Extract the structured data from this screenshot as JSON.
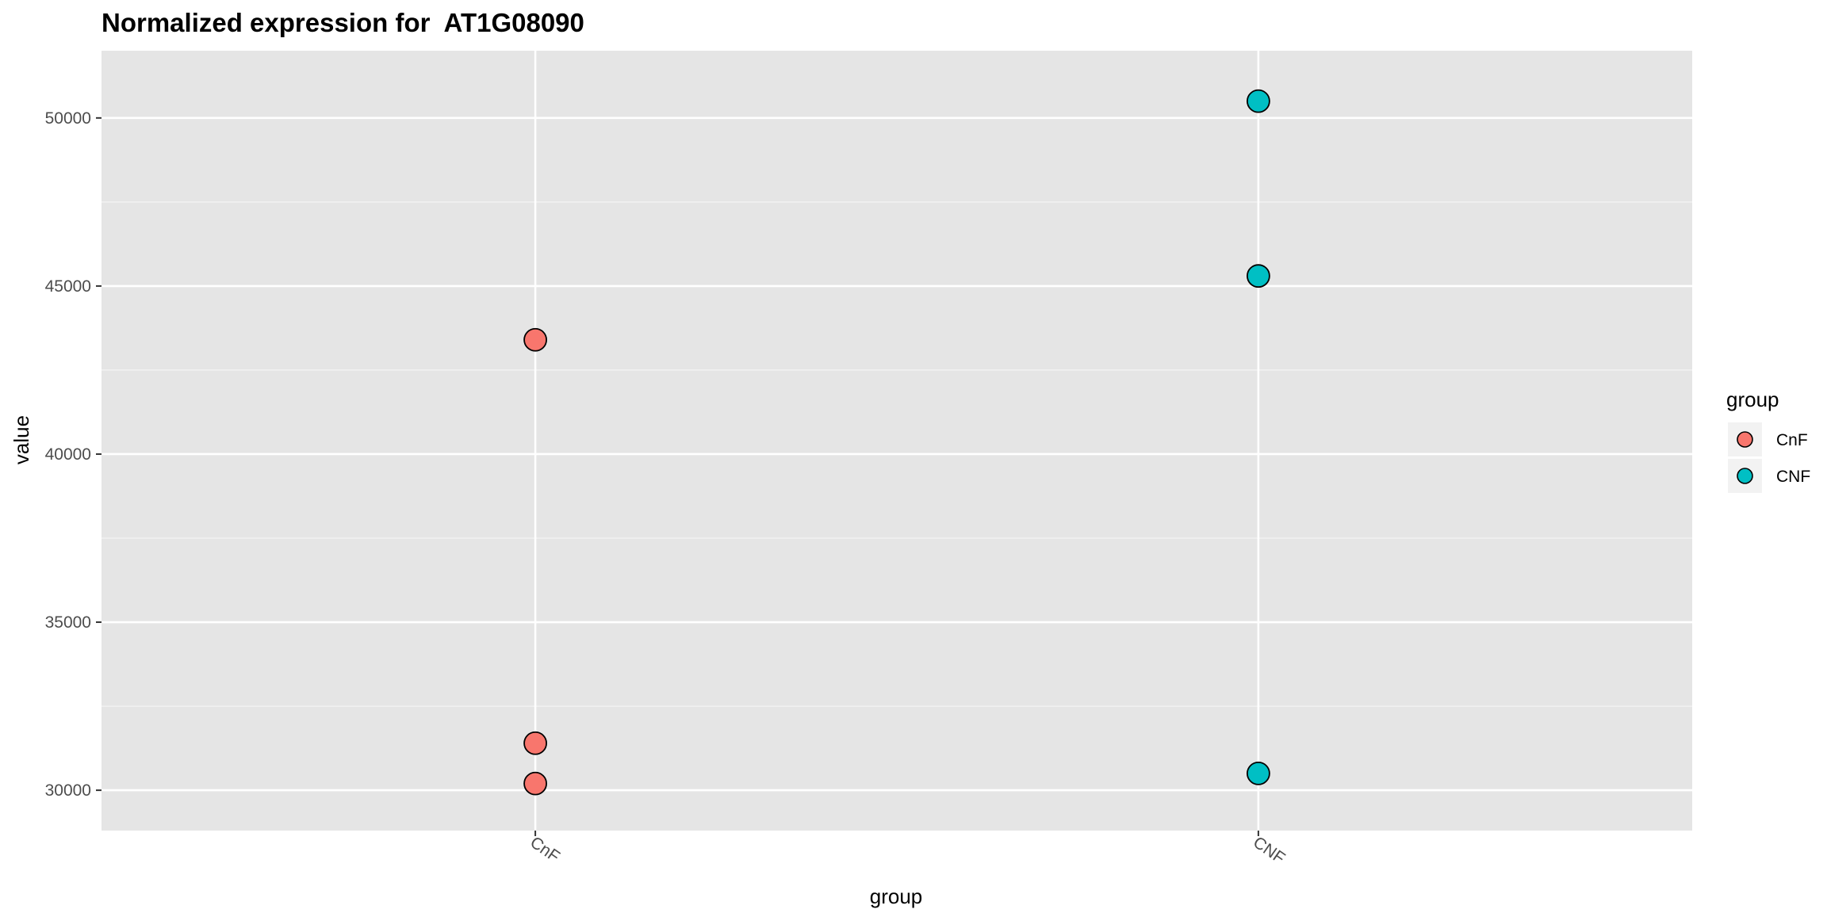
{
  "chart_data": {
    "type": "scatter",
    "title": "Normalized expression for  AT1G08090",
    "xlabel": "group",
    "ylabel": "value",
    "categories": [
      "CnF",
      "CNF"
    ],
    "ylim": [
      28800,
      52000
    ],
    "y_ticks": [
      30000,
      35000,
      40000,
      45000,
      50000
    ],
    "y_tick_labels": [
      "30000",
      "35000",
      "40000",
      "45000",
      "50000"
    ],
    "grid": true,
    "panel_background": "#e5e5e5",
    "series": [
      {
        "name": "CnF",
        "color": "#f8766d",
        "x": [
          "CnF",
          "CnF",
          "CnF"
        ],
        "values": [
          43400,
          31400,
          30200
        ]
      },
      {
        "name": "CNF",
        "color": "#00bfc4",
        "x": [
          "CNF",
          "CNF",
          "CNF"
        ],
        "values": [
          50500,
          45300,
          30500
        ]
      }
    ],
    "legend": {
      "title": "group",
      "position": "right",
      "entries": [
        "CnF",
        "CNF"
      ]
    }
  }
}
